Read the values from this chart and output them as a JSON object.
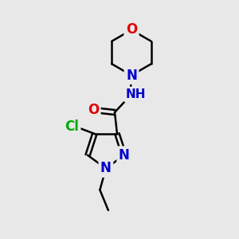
{
  "bg_color": "#e8e8e8",
  "atom_colors": {
    "C": "#000000",
    "N": "#0000cc",
    "O": "#dd0000",
    "Cl": "#00aa00",
    "H": "#708090"
  },
  "bond_color": "#000000",
  "bond_width": 1.8,
  "font_size": 12,
  "fig_size": [
    3.0,
    3.0
  ],
  "dpi": 100
}
